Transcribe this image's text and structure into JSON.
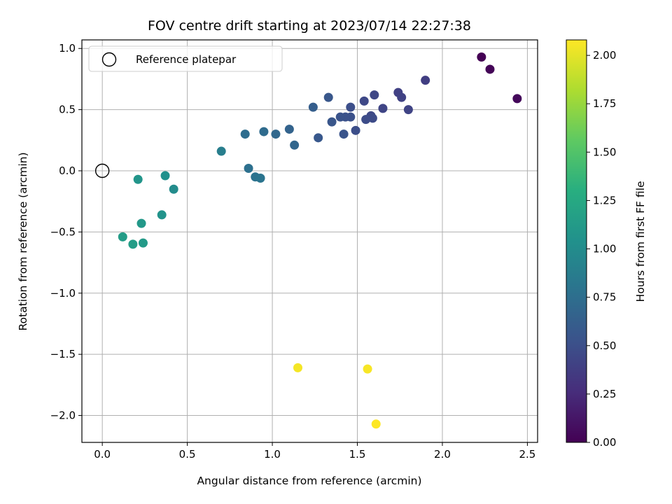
{
  "chart_data": {
    "type": "scatter",
    "title": "FOV centre drift starting at 2023/07/14 22:27:38",
    "xlabel": "Angular distance from reference (arcmin)",
    "ylabel": "Rotation from reference (arcmin)",
    "xlim": [
      -0.12,
      2.56
    ],
    "ylim": [
      -2.22,
      1.07
    ],
    "xticks": [
      0.0,
      0.5,
      1.0,
      1.5,
      2.0,
      2.5
    ],
    "xtick_labels": [
      "0.0",
      "0.5",
      "1.0",
      "1.5",
      "2.0",
      "2.5"
    ],
    "yticks": [
      1.0,
      0.5,
      0.0,
      -0.5,
      -1.0,
      -1.5,
      -2.0
    ],
    "ytick_labels": [
      "1.0",
      "0.5",
      "0.0",
      "−0.5",
      "−1.0",
      "−1.5",
      "−2.0"
    ],
    "grid": true,
    "legend": {
      "placement": "upper-left",
      "entries": [
        "Reference platepar"
      ]
    },
    "reference_point": {
      "x": 0.0,
      "y": 0.0
    },
    "colorbar": {
      "label": "Hours from first FF file",
      "colormap": "viridis",
      "range": [
        0.0,
        2.08
      ],
      "ticks": [
        0.0,
        0.25,
        0.5,
        0.75,
        1.0,
        1.25,
        1.5,
        1.75,
        2.0
      ],
      "tick_labels": [
        "0.00",
        "0.25",
        "0.50",
        "0.75",
        "1.00",
        "1.25",
        "1.50",
        "1.75",
        "2.00"
      ]
    },
    "series": [
      {
        "points": [
          {
            "x": 2.23,
            "y": 0.93,
            "c": 0.0
          },
          {
            "x": 2.28,
            "y": 0.83,
            "c": 0.02
          },
          {
            "x": 2.44,
            "y": 0.59,
            "c": 0.04
          },
          {
            "x": 1.9,
            "y": 0.74,
            "c": 0.38
          },
          {
            "x": 1.74,
            "y": 0.64,
            "c": 0.4
          },
          {
            "x": 1.76,
            "y": 0.6,
            "c": 0.41
          },
          {
            "x": 1.8,
            "y": 0.5,
            "c": 0.42
          },
          {
            "x": 1.65,
            "y": 0.51,
            "c": 0.43
          },
          {
            "x": 1.6,
            "y": 0.62,
            "c": 0.44
          },
          {
            "x": 1.54,
            "y": 0.57,
            "c": 0.45
          },
          {
            "x": 1.58,
            "y": 0.45,
            "c": 0.46
          },
          {
            "x": 1.59,
            "y": 0.43,
            "c": 0.47
          },
          {
            "x": 1.55,
            "y": 0.42,
            "c": 0.48
          },
          {
            "x": 1.49,
            "y": 0.33,
            "c": 0.49
          },
          {
            "x": 1.46,
            "y": 0.52,
            "c": 0.5
          },
          {
            "x": 1.46,
            "y": 0.44,
            "c": 0.51
          },
          {
            "x": 1.43,
            "y": 0.44,
            "c": 0.52
          },
          {
            "x": 1.4,
            "y": 0.44,
            "c": 0.53
          },
          {
            "x": 1.42,
            "y": 0.3,
            "c": 0.54
          },
          {
            "x": 1.35,
            "y": 0.4,
            "c": 0.55
          },
          {
            "x": 1.33,
            "y": 0.6,
            "c": 0.56
          },
          {
            "x": 1.27,
            "y": 0.27,
            "c": 0.57
          },
          {
            "x": 1.24,
            "y": 0.52,
            "c": 0.62
          },
          {
            "x": 1.1,
            "y": 0.34,
            "c": 0.66
          },
          {
            "x": 1.13,
            "y": 0.21,
            "c": 0.68
          },
          {
            "x": 1.02,
            "y": 0.3,
            "c": 0.7
          },
          {
            "x": 0.95,
            "y": 0.32,
            "c": 0.72
          },
          {
            "x": 0.84,
            "y": 0.3,
            "c": 0.74
          },
          {
            "x": 0.86,
            "y": 0.02,
            "c": 0.76
          },
          {
            "x": 0.9,
            "y": -0.05,
            "c": 0.78
          },
          {
            "x": 0.93,
            "y": -0.06,
            "c": 0.8
          },
          {
            "x": 0.7,
            "y": 0.16,
            "c": 0.88
          },
          {
            "x": 0.42,
            "y": -0.15,
            "c": 1.0
          },
          {
            "x": 0.37,
            "y": -0.04,
            "c": 1.03
          },
          {
            "x": 0.35,
            "y": -0.36,
            "c": 1.06
          },
          {
            "x": 0.21,
            "y": -0.07,
            "c": 1.08
          },
          {
            "x": 0.23,
            "y": -0.43,
            "c": 1.1
          },
          {
            "x": 0.24,
            "y": -0.59,
            "c": 1.12
          },
          {
            "x": 0.12,
            "y": -0.54,
            "c": 1.14
          },
          {
            "x": 0.18,
            "y": -0.6,
            "c": 1.15
          },
          {
            "x": 1.15,
            "y": -1.61,
            "c": 2.05
          },
          {
            "x": 1.56,
            "y": -1.62,
            "c": 2.06
          },
          {
            "x": 1.61,
            "y": -2.07,
            "c": 2.08
          }
        ]
      }
    ]
  }
}
